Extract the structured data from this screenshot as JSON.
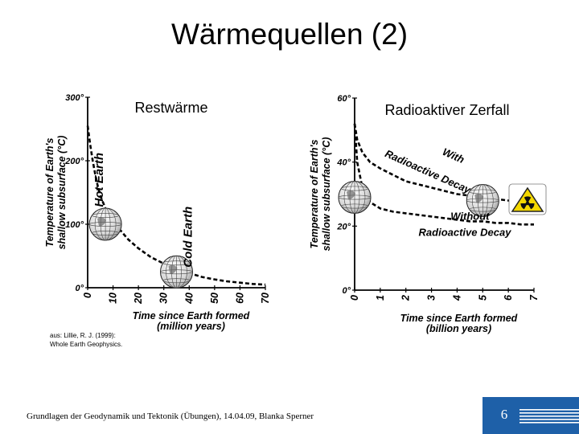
{
  "slide": {
    "title": "Wärmequellen (2)",
    "footer": "Grundlagen der Geodynamik und Tektonik (Übungen), 14.04.09, Blanka Sperner",
    "page_number": "6",
    "source_lines": [
      "aus: Lillie, R. J. (1999):",
      "Whole Earth Geophysics."
    ],
    "colors": {
      "page_box": "#1e60a8",
      "stripes": "#ffffff",
      "hazard_yellow": "#f4d800"
    }
  },
  "chart_data": [
    {
      "type": "line",
      "overlay_label": "Restwärme",
      "ylabel": [
        "Temperature of Earth's",
        "shallow subsurface (°C)"
      ],
      "xlabel": [
        "Time since Earth formed",
        "(million years)"
      ],
      "ylim": [
        0,
        300
      ],
      "xlim": [
        0,
        70
      ],
      "x_ticks": [
        "0",
        "10",
        "20",
        "30",
        "40",
        "50",
        "60",
        "70"
      ],
      "y_ticks": [
        "0°",
        "100°",
        "200°",
        "300°"
      ],
      "series": [
        {
          "x": [
            0,
            1,
            2,
            3,
            4,
            5,
            7,
            10,
            13,
            16,
            20,
            25,
            30,
            35,
            40,
            45,
            50,
            55,
            60,
            65,
            70
          ],
          "y": [
            255,
            225,
            200,
            178,
            160,
            145,
            125,
            105,
            90,
            76,
            62,
            48,
            38,
            30,
            23,
            17,
            13,
            10,
            8,
            6,
            5
          ]
        }
      ],
      "annotations": [
        {
          "text": "Hot Earth",
          "x": 6,
          "y": 170
        },
        {
          "text": "Cold Earth",
          "x": 41,
          "y": 80
        }
      ],
      "globes": [
        {
          "x": 7,
          "y": 100
        },
        {
          "x": 35,
          "y": 25
        }
      ]
    },
    {
      "type": "line",
      "overlay_label": "Radioaktiver Zerfall",
      "ylabel": [
        "Temperature of Earth's",
        "shallow subsurface (°C)"
      ],
      "xlabel": [
        "Time since Earth formed",
        "(billion years)"
      ],
      "ylim": [
        0,
        60
      ],
      "xlim": [
        0,
        7
      ],
      "x_ticks": [
        "0",
        "1",
        "2",
        "3",
        "4",
        "5",
        "6",
        "7"
      ],
      "y_ticks": [
        "0°",
        "20°",
        "40°",
        "60°"
      ],
      "series": [
        {
          "name": "With Radioactive Decay",
          "x": [
            0,
            0.1,
            0.3,
            0.6,
            1,
            1.5,
            2,
            2.5,
            3,
            3.5,
            4,
            4.5,
            5,
            5.5,
            6,
            6.5,
            7
          ],
          "y": [
            52,
            47,
            43,
            40,
            38,
            36,
            34,
            33,
            32,
            31,
            30,
            29.5,
            29,
            28.5,
            28,
            27.5,
            27
          ]
        },
        {
          "name": "Without Radioactive Decay",
          "x": [
            0,
            0.1,
            0.3,
            0.6,
            1,
            1.5,
            2,
            2.5,
            3,
            3.5,
            4,
            4.5,
            5,
            5.5,
            6,
            6.5,
            7
          ],
          "y": [
            52,
            40,
            32,
            27.5,
            25.5,
            24.5,
            24,
            23.5,
            23,
            22.5,
            22,
            21.5,
            21.5,
            21,
            21,
            20.5,
            20.5
          ]
        }
      ],
      "annotations": [
        {
          "text": "With",
          "x": 3.8,
          "y": 41
        },
        {
          "text": "Radioactive Decay",
          "x": 2.8,
          "y": 36
        },
        {
          "text": "Without",
          "x": 4.5,
          "y": 22
        },
        {
          "text": "Radioactive Decay",
          "x": 4.3,
          "y": 17
        }
      ],
      "globes": [
        {
          "x": 0,
          "y": 29
        },
        {
          "x": 5,
          "y": 28
        }
      ]
    }
  ]
}
